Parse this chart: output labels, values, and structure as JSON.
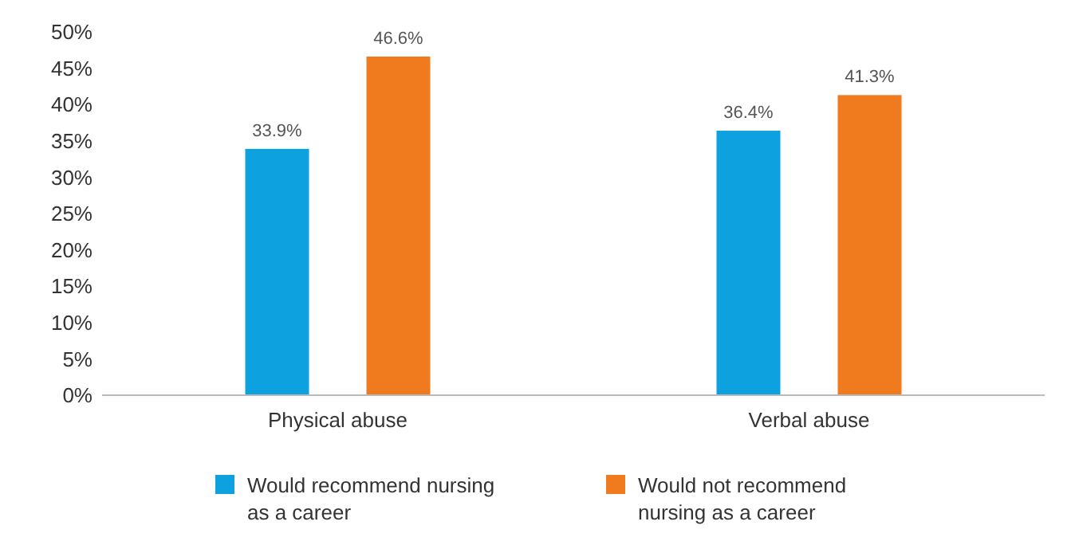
{
  "chart_data": {
    "type": "bar",
    "categories": [
      "Physical abuse",
      "Verbal abuse"
    ],
    "series": [
      {
        "name": "Would recommend nursing as a career",
        "color": "#0ea1e0",
        "values": [
          33.9,
          36.4
        ],
        "value_labels": [
          "33.9%",
          "36.4%"
        ]
      },
      {
        "name": "Would not recommend nursing as a career",
        "color": "#f07b1e",
        "values": [
          46.6,
          41.3
        ],
        "value_labels": [
          "46.6%",
          "41.3%"
        ]
      }
    ],
    "ylim": [
      0,
      50
    ],
    "yticks": [
      {
        "value": 0,
        "label": "0%"
      },
      {
        "value": 5,
        "label": "5%"
      },
      {
        "value": 10,
        "label": "10%"
      },
      {
        "value": 15,
        "label": "15%"
      },
      {
        "value": 20,
        "label": "20%"
      },
      {
        "value": 25,
        "label": "25%"
      },
      {
        "value": 30,
        "label": "30%"
      },
      {
        "value": 35,
        "label": "35%"
      },
      {
        "value": 40,
        "label": "40%"
      },
      {
        "value": 45,
        "label": "45%"
      },
      {
        "value": 50,
        "label": "50%"
      }
    ],
    "grid": false,
    "legend": "bottom"
  }
}
